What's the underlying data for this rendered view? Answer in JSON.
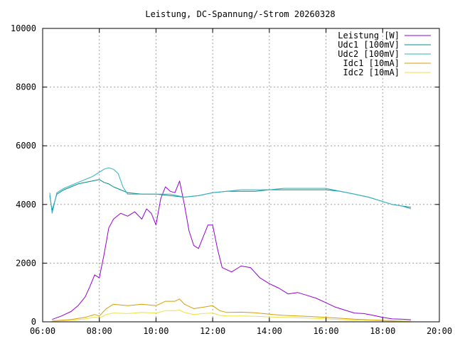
{
  "chart_data": {
    "type": "line",
    "title": "Leistung, DC-Spannung/-Strom 20260328",
    "xlabel": "",
    "ylabel": "",
    "xlim": [
      "06:00",
      "20:00"
    ],
    "ylim": [
      0,
      10000
    ],
    "x_ticks": [
      "06:00",
      "08:00",
      "10:00",
      "12:00",
      "14:00",
      "16:00",
      "18:00",
      "20:00"
    ],
    "y_ticks": [
      0,
      2000,
      4000,
      6000,
      8000,
      10000
    ],
    "grid": true,
    "legend_position": "top-right",
    "series": [
      {
        "name": "Leistung [W]",
        "color": "#9400d3",
        "x": [
          "06:20",
          "06:40",
          "07:00",
          "07:15",
          "07:30",
          "07:40",
          "07:50",
          "08:00",
          "08:10",
          "08:20",
          "08:30",
          "08:45",
          "09:00",
          "09:15",
          "09:30",
          "09:40",
          "09:50",
          "10:00",
          "10:10",
          "10:20",
          "10:30",
          "10:40",
          "10:50",
          "11:00",
          "11:10",
          "11:20",
          "11:30",
          "11:40",
          "11:50",
          "12:00",
          "12:10",
          "12:20",
          "12:40",
          "13:00",
          "13:20",
          "13:40",
          "14:00",
          "14:20",
          "14:40",
          "15:00",
          "15:20",
          "15:40",
          "16:00",
          "16:20",
          "16:40",
          "17:00",
          "17:20",
          "17:40",
          "18:00",
          "18:20",
          "18:40",
          "19:00"
        ],
        "y": [
          80,
          200,
          350,
          550,
          850,
          1200,
          1600,
          1500,
          2300,
          3200,
          3500,
          3700,
          3600,
          3750,
          3500,
          3850,
          3700,
          3300,
          4200,
          4600,
          4450,
          4400,
          4800,
          4000,
          3100,
          2600,
          2500,
          2900,
          3300,
          3300,
          2500,
          1850,
          1700,
          1900,
          1850,
          1500,
          1300,
          1150,
          950,
          1000,
          900,
          800,
          650,
          500,
          400,
          300,
          280,
          220,
          150,
          100,
          90,
          70
        ]
      },
      {
        "name": "Udc1 [100mV]",
        "color": "#008b8b",
        "x": [
          "06:15",
          "06:20",
          "06:30",
          "06:45",
          "07:00",
          "07:15",
          "07:30",
          "07:45",
          "08:00",
          "08:10",
          "08:20",
          "08:30",
          "08:45",
          "09:00",
          "09:30",
          "10:00",
          "10:30",
          "11:00",
          "11:30",
          "12:00",
          "12:30",
          "13:00",
          "13:30",
          "14:00",
          "14:30",
          "15:00",
          "15:30",
          "16:00",
          "16:30",
          "17:00",
          "17:30",
          "18:00",
          "18:20",
          "18:40",
          "19:00"
        ],
        "y": [
          4300,
          3800,
          4350,
          4500,
          4600,
          4700,
          4750,
          4800,
          4850,
          4750,
          4700,
          4600,
          4500,
          4400,
          4350,
          4350,
          4300,
          4250,
          4300,
          4400,
          4450,
          4450,
          4450,
          4500,
          4500,
          4500,
          4500,
          4500,
          4450,
          4350,
          4250,
          4100,
          4000,
          3950,
          3900
        ]
      },
      {
        "name": "Udc2 [100mV]",
        "color": "#30b0c0",
        "x": [
          "06:15",
          "06:20",
          "06:30",
          "06:45",
          "07:00",
          "07:15",
          "07:30",
          "07:45",
          "08:00",
          "08:10",
          "08:20",
          "08:30",
          "08:40",
          "08:50",
          "09:00",
          "09:30",
          "10:00",
          "10:30",
          "11:00",
          "11:30",
          "12:00",
          "12:30",
          "13:00",
          "13:30",
          "14:00",
          "14:30",
          "15:00",
          "15:30",
          "16:00",
          "16:30",
          "17:00",
          "17:30",
          "18:00",
          "18:20",
          "18:40",
          "19:00"
        ],
        "y": [
          4400,
          3700,
          4400,
          4550,
          4650,
          4750,
          4850,
          4950,
          5100,
          5200,
          5250,
          5200,
          5050,
          4600,
          4350,
          4350,
          4350,
          4350,
          4250,
          4300,
          4400,
          4450,
          4500,
          4500,
          4500,
          4550,
          4550,
          4550,
          4550,
          4450,
          4350,
          4250,
          4100,
          4000,
          3950,
          3850
        ]
      },
      {
        "name": "Idc1 [10mA]",
        "color": "#d4a000",
        "x": [
          "06:20",
          "07:00",
          "07:30",
          "07:50",
          "08:00",
          "08:15",
          "08:30",
          "09:00",
          "09:30",
          "10:00",
          "10:20",
          "10:40",
          "10:50",
          "11:00",
          "11:20",
          "11:40",
          "12:00",
          "12:15",
          "12:30",
          "13:00",
          "13:30",
          "14:00",
          "14:30",
          "15:00",
          "15:30",
          "16:00",
          "16:30",
          "17:00",
          "17:30",
          "18:00",
          "18:30",
          "19:00"
        ],
        "y": [
          30,
          80,
          150,
          250,
          200,
          450,
          600,
          550,
          600,
          550,
          700,
          700,
          780,
          600,
          450,
          500,
          550,
          380,
          320,
          330,
          310,
          260,
          220,
          200,
          180,
          150,
          120,
          90,
          70,
          50,
          30,
          20
        ]
      },
      {
        "name": "Idc2 [10mA]",
        "color": "#f0e040",
        "x": [
          "06:20",
          "07:00",
          "07:30",
          "07:50",
          "08:00",
          "08:15",
          "08:30",
          "09:00",
          "09:30",
          "10:00",
          "10:20",
          "10:40",
          "10:50",
          "11:00",
          "11:20",
          "11:40",
          "12:00",
          "12:15",
          "12:30",
          "13:00",
          "13:30",
          "14:00",
          "14:30",
          "15:00",
          "15:30",
          "16:00",
          "16:30",
          "17:00",
          "17:30",
          "18:00",
          "18:30",
          "19:00"
        ],
        "y": [
          20,
          50,
          100,
          160,
          130,
          250,
          300,
          280,
          320,
          300,
          380,
          380,
          400,
          320,
          250,
          280,
          300,
          220,
          200,
          200,
          190,
          170,
          150,
          140,
          120,
          100,
          80,
          60,
          50,
          35,
          20,
          15
        ]
      }
    ]
  }
}
